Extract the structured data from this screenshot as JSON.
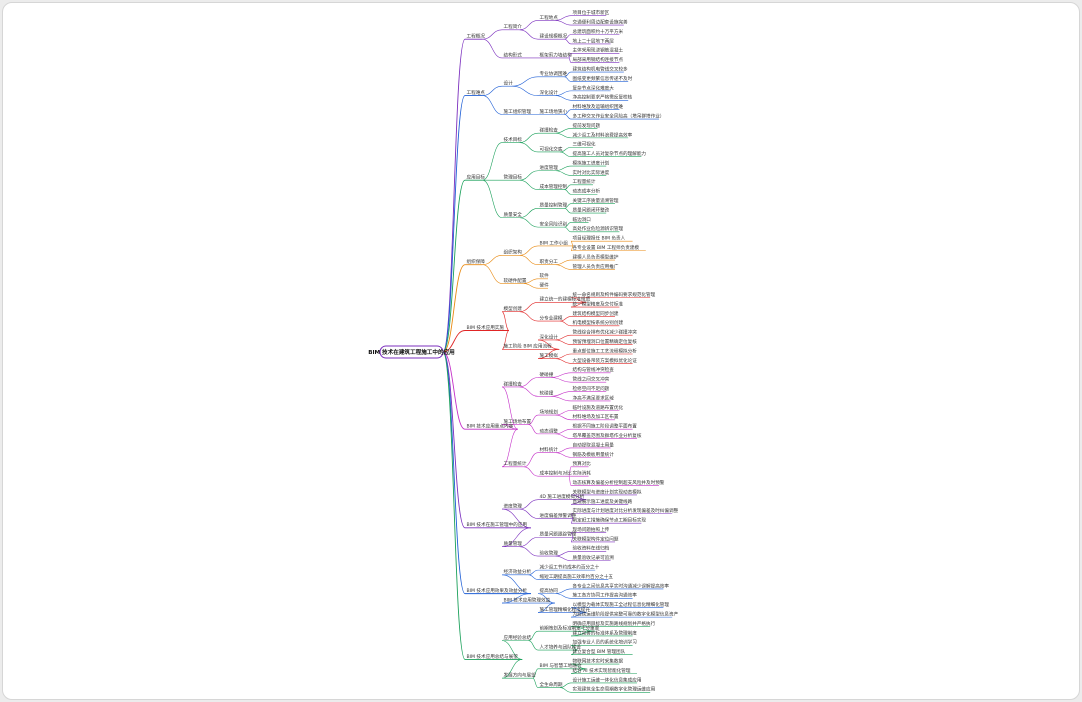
{
  "root": {
    "label": "BIM 技术在建筑工程施工中的应用",
    "color": "#7b2fbe"
  },
  "palette": [
    "#7b2fbe",
    "#1f5fd6",
    "#1aa05a",
    "#e88a12",
    "#e02525",
    "#c42fc8",
    "#7b2fbe",
    "#1f5fd6",
    "#1aa05a"
  ],
  "branches": [
    {
      "label": "工程概况",
      "children": [
        {
          "label": "工程简介",
          "children": [
            {
              "label": "工程地点",
              "children": [
                {
                  "label": "项目位于城市新区"
                },
                {
                  "label": "交通便利周边配套设施完善"
                }
              ]
            },
            {
              "label": "建设规模概况",
              "children": [
                {
                  "label": "总建筑面积约十万平方米"
                },
                {
                  "label": "地上二十层地下两层"
                }
              ]
            }
          ]
        },
        {
          "label": "结构形式",
          "children": [
            {
              "label": "框架剪力墙结构",
              "children": [
                {
                  "label": "主体采用现浇钢筋混凝土"
                },
                {
                  "label": "局部采用钢结构连接节点"
                }
              ]
            }
          ]
        }
      ]
    },
    {
      "label": "工程难点",
      "children": [
        {
          "label": "设计",
          "children": [
            {
              "label": "专业协调困难",
              "children": [
                {
                  "label": "建筑结构机电管线交叉较多"
                },
                {
                  "label": "图纸变更频繁信息传递不及时"
                }
              ]
            },
            {
              "label": "深化设计",
              "children": [
                {
                  "label": "复杂节点深化难度大"
                },
                {
                  "label": "净高控制要求严格需反复校核"
                }
              ]
            }
          ]
        },
        {
          "label": "施工组织管理",
          "children": [
            {
              "label": "施工场地狭小",
              "children": [
                {
                  "label": "材料堆放及运输组织困难"
                },
                {
                  "label": "多工种交叉作业安全风险高（塔吊群塔作业）"
                }
              ]
            }
          ]
        }
      ]
    },
    {
      "label": "应用目标",
      "children": [
        {
          "label": "技术目标",
          "children": [
            {
              "label": "碰撞检查",
              "children": [
                {
                  "label": "提前发现问题"
                },
                {
                  "label": "减少返工及材料浪费提高效率"
                }
              ]
            },
            {
              "label": "可视化交底",
              "children": [
                {
                  "label": "三维可视化"
                },
                {
                  "label": "提高施工人员对复杂节点的理解能力"
                }
              ]
            }
          ]
        },
        {
          "label": "管理目标",
          "children": [
            {
              "label": "进度管理",
              "children": [
                {
                  "label": "模拟施工进度计划"
                },
                {
                  "label": "实时对比实际进度"
                }
              ]
            },
            {
              "label": "成本管理控制",
              "children": [
                {
                  "label": "工程量统计"
                },
                {
                  "label": "动态成本分析"
                }
              ]
            }
          ]
        },
        {
          "label": "质量安全",
          "children": [
            {
              "label": "质量控制管理",
              "children": [
                {
                  "label": "关键工序质量追溯管理"
                },
                {
                  "label": "质量问题闭环整改"
                }
              ]
            },
            {
              "label": "安全风险识别",
              "children": [
                {
                  "label": "临边洞口"
                },
                {
                  "label": "高处作业危险源辨识管理"
                }
              ]
            }
          ]
        }
      ]
    },
    {
      "label": "组织保障",
      "children": [
        {
          "label": "组织架构",
          "children": [
            {
              "label": "BIM 工作小组",
              "children": [
                {
                  "label": "项目经理担任 BIM 负责人"
                },
                {
                  "label": "各专业设置 BIM 工程师负责建模"
                }
              ]
            },
            {
              "label": "职责分工",
              "children": [
                {
                  "label": "建模人员负责模型维护"
                },
                {
                  "label": "管理人员负责应用推广"
                }
              ]
            }
          ]
        },
        {
          "label": "软硬件配置",
          "children": [
            {
              "label": "软件"
            },
            {
              "label": "硬件"
            }
          ]
        }
      ]
    },
    {
      "label": "BIM 技术应用实施",
      "children": [
        {
          "label": "模型创建",
          "children": [
            {
              "label": "建立统一的建模标准规范",
              "children": [
                {
                  "label": "统一命名规则及构件编码要求规范化管理"
                },
                {
                  "label": "统一模型精度及交付标准"
                }
              ]
            },
            {
              "label": "分专业建模",
              "children": [
                {
                  "label": "建筑结构模型同步创建"
                },
                {
                  "label": "机电模型按系统分别创建"
                }
              ]
            }
          ]
        },
        {
          "label": "施工阶段 BIM 应用流程",
          "children": [
            {
              "label": "深化设计",
              "children": [
                {
                  "label": "管线综合排布优化减少碰撞冲突"
                },
                {
                  "label": "预留预埋洞口位置精确定位复核"
                }
              ]
            },
            {
              "label": "施工模拟",
              "children": [
                {
                  "label": "重点部位施工工艺流程模拟分析"
                },
                {
                  "label": "大型设备吊装方案模拟优化论证"
                }
              ]
            }
          ]
        }
      ]
    },
    {
      "label": "BIM 技术应用重点内容",
      "children": [
        {
          "label": "碰撞检查",
          "children": [
            {
              "label": "硬碰撞",
              "children": [
                {
                  "label": "结构与管线冲突检查"
                },
                {
                  "label": "管线之间交叉冲突"
                }
              ]
            },
            {
              "label": "软碰撞",
              "children": [
                {
                  "label": "检修空间不足问题"
                },
                {
                  "label": "净高不满足要求区域"
                }
              ]
            }
          ]
        },
        {
          "label": "施工场地布置",
          "children": [
            {
              "label": "场地规划",
              "children": [
                {
                  "label": "临时设施及道路布置优化"
                },
                {
                  "label": "材料堆场及加工区布置"
                }
              ]
            },
            {
              "label": "动态调整",
              "children": [
                {
                  "label": "根据不同施工阶段调整平面布置"
                },
                {
                  "label": "塔吊覆盖范围及群塔作业分析复核"
                }
              ]
            }
          ]
        },
        {
          "label": "工程量统计",
          "children": [
            {
              "label": "材料统计",
              "children": [
                {
                  "label": "自动提取混凝土用量"
                },
                {
                  "label": "钢筋及模板用量统计"
                }
              ]
            },
            {
              "label": "成本控制与对比",
              "children": [
                {
                  "label": "预算对比"
                },
                {
                  "label": "实际消耗"
                },
                {
                  "label": "动态核算及偏差分析控制超支风险并及时预警"
                }
              ]
            }
          ]
        }
      ]
    },
    {
      "label": "BIM 技术在施工管理中的应用",
      "children": [
        {
          "label": "进度管理",
          "children": [
            {
              "label": "4D 施工进度模拟分析",
              "children": [
                {
                  "label": "关联模型与进度计划实现动态模拟"
                },
                {
                  "label": "直观展示施工进度及关键线路"
                }
              ]
            },
            {
              "label": "进度偏差预警调整",
              "children": [
                {
                  "label": "实际进度与计划进度对比分析发现偏差及时纠偏调整"
                },
                {
                  "label": "制定赶工措施确保节点工期目标实现"
                }
              ]
            }
          ]
        },
        {
          "label": "质量管理",
          "children": [
            {
              "label": "质量问题跟踪管理",
              "children": [
                {
                  "label": "现场问题拍照上传"
                },
                {
                  "label": "关联模型构件定位问题"
                }
              ]
            },
            {
              "label": "验收管理",
              "children": [
                {
                  "label": "验收资料在线归档"
                },
                {
                  "label": "质量验收记录可追溯"
                }
              ]
            }
          ]
        }
      ]
    },
    {
      "label": "BIM 技术应用效果及效益分析",
      "children": [
        {
          "label": "经济效益分析",
          "children": [
            {
              "label": "减少返工节约成本约百分之十",
              "children": []
            },
            {
              "label": "缩短工期提高施工效率约百分之十五",
              "children": []
            }
          ]
        },
        {
          "label": "BIM 技术应用管理效益",
          "children": [
            {
              "label": "提高协同",
              "children": [
                {
                  "label": "各专业之间信息共享实时沟通减少误解提高效率"
                },
                {
                  "label": "施工各方协同工作提高沟通效率"
                }
              ]
            },
            {
              "label": "施工管理精细化程度提升",
              "children": [
                {
                  "label": "以模型为载体实现施工全过程信息化精细化管理"
                },
                {
                  "label": "为后续运维阶段提供完整可靠的数字化模型信息资产"
                }
              ]
            }
          ]
        }
      ]
    },
    {
      "label": "BIM 技术应用总结与展望",
      "children": [
        {
          "label": "应用经验总结",
          "children": [
            {
              "label": "前期策划及标准制定十分重要",
              "children": [
                {
                  "label": "明确应用目标及实施路线规划并严格执行"
                },
                {
                  "label": "建立完善的标准体系及管理制度"
                }
              ]
            },
            {
              "label": "人才培养与团队建设",
              "children": [
                {
                  "label": "加强专业人员的系统化培训学习"
                },
                {
                  "label": "建立复合型 BIM 管理团队"
                }
              ]
            }
          ]
        },
        {
          "label": "发展方向与展望",
          "children": [
            {
              "label": "BIM 与智慧工地融合",
              "children": [
                {
                  "label": "物联网技术实时采集数据"
                },
                {
                  "label": "结合 AI 技术实现智能化管理"
                }
              ]
            },
            {
              "label": "全生命周期",
              "children": [
                {
                  "label": "设计施工运维一体化信息集成应用"
                },
                {
                  "label": "实现建筑全生命周期数字化管理运维应用"
                }
              ]
            }
          ]
        }
      ]
    }
  ]
}
